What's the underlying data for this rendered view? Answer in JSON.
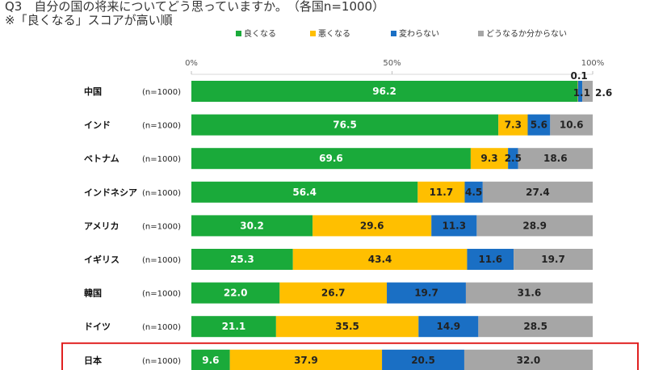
{
  "header": {
    "title": "Q3　自分の国の将来についてどう思っていますか。　（各国n=1000）",
    "subtitle": "※「良くなる」スコアが高い順"
  },
  "colors": {
    "good": "#1aaa3a",
    "bad": "#ffbf00",
    "unchanged": "#1a6fc4",
    "unknown": "#a6a6a6",
    "highlight": "#e02020"
  },
  "chart_data": {
    "type": "bar",
    "orientation": "horizontal",
    "stacked": true,
    "categories": [
      "中国",
      "インド",
      "ベトナム",
      "インドネシア",
      "アメリカ",
      "イギリス",
      "韓国",
      "ドイツ",
      "日本"
    ],
    "sample_sizes": [
      "(n=1000)",
      "(n=1000)",
      "(n=1000)",
      "(n=1000)",
      "(n=1000)",
      "(n=1000)",
      "(n=1000)",
      "(n=1000)",
      "(n=1000)"
    ],
    "series": [
      {
        "name": "良くなる",
        "values": [
          96.2,
          76.5,
          69.6,
          56.4,
          30.2,
          25.3,
          22.0,
          21.1,
          9.6
        ]
      },
      {
        "name": "悪くなる",
        "values": [
          0.1,
          7.3,
          9.3,
          11.7,
          29.6,
          43.4,
          26.7,
          35.5,
          37.9
        ]
      },
      {
        "name": "変わらない",
        "values": [
          1.1,
          5.6,
          2.5,
          4.5,
          11.3,
          11.6,
          19.7,
          14.9,
          20.5
        ]
      },
      {
        "name": "どうなるか分からない",
        "values": [
          2.6,
          10.6,
          18.6,
          27.4,
          28.9,
          19.7,
          31.6,
          28.5,
          32.0
        ]
      }
    ],
    "x_ticks": [
      "0%",
      "50%",
      "100%"
    ],
    "xlim": [
      0,
      100
    ],
    "highlighted_category": "日本",
    "legend_position": "top",
    "grid": false
  }
}
